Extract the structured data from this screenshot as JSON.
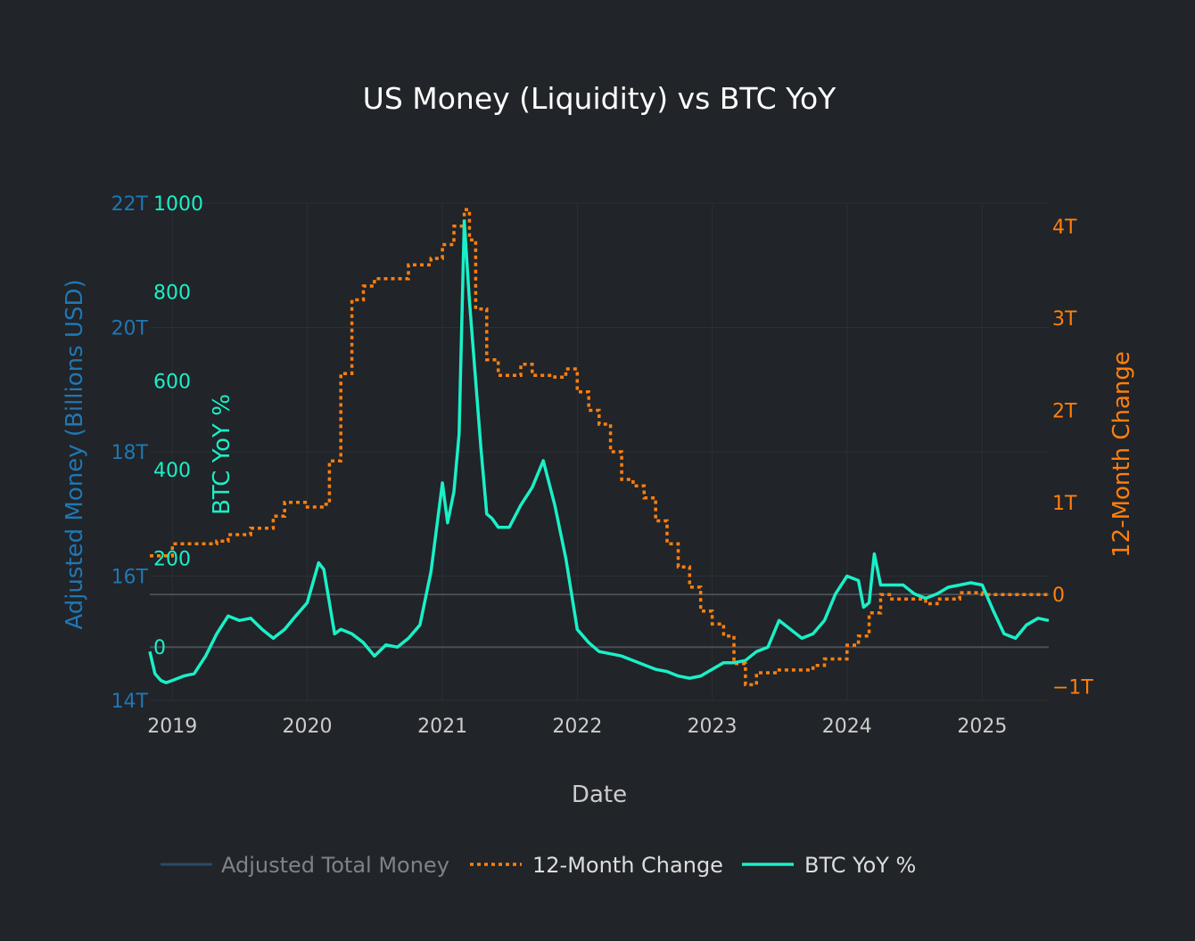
{
  "chart_data": {
    "type": "line",
    "title": "US Money (Liquidity) vs BTC YoY",
    "xlabel": "Date",
    "x_ticks": [
      "2019",
      "2020",
      "2021",
      "2022",
      "2023",
      "2024",
      "2025"
    ],
    "xlim": [
      "2018-11-01",
      "2025-06-30"
    ],
    "axes": {
      "money": {
        "label": "Adjusted Money (Billions USD)",
        "ylim": [
          14,
          22
        ],
        "unit": "T",
        "ticks": [
          "14T",
          "16T",
          "18T",
          "20T",
          "22T"
        ],
        "color": "#1f77b4"
      },
      "btc": {
        "label": "BTC YoY %",
        "ylim": [
          -120,
          1000
        ],
        "ticks": [
          "0",
          "200",
          "400",
          "600",
          "800",
          "1000"
        ],
        "color": "#19f0c8"
      },
      "change": {
        "label": "12-Month Change",
        "ylim": [
          -1.15,
          4.25
        ],
        "unit": "T",
        "ticks": [
          "−1T",
          "0",
          "1T",
          "2T",
          "3T",
          "4T"
        ],
        "color": "#ff7f0e"
      }
    },
    "series": [
      {
        "name": "Adjusted Total Money",
        "axis": "money",
        "style": "solid",
        "color": "#2a4a6e",
        "legend_state": "hidden",
        "points": []
      },
      {
        "name": "12-Month Change",
        "axis": "change",
        "style": "dotted-step",
        "color": "#ff7f0e",
        "points": [
          [
            "2018-11-01",
            0.42
          ],
          [
            "2019-01-01",
            0.55
          ],
          [
            "2019-03-01",
            0.55
          ],
          [
            "2019-05-01",
            0.58
          ],
          [
            "2019-06-01",
            0.65
          ],
          [
            "2019-08-01",
            0.72
          ],
          [
            "2019-10-01",
            0.85
          ],
          [
            "2019-11-01",
            1.0
          ],
          [
            "2020-01-01",
            0.95
          ],
          [
            "2020-02-15",
            0.98
          ],
          [
            "2020-03-01",
            1.45
          ],
          [
            "2020-04-01",
            2.4
          ],
          [
            "2020-05-01",
            3.2
          ],
          [
            "2020-06-01",
            3.35
          ],
          [
            "2020-07-01",
            3.43
          ],
          [
            "2020-09-01",
            3.43
          ],
          [
            "2020-10-01",
            3.58
          ],
          [
            "2020-12-01",
            3.65
          ],
          [
            "2021-01-01",
            3.8
          ],
          [
            "2021-02-01",
            4.0
          ],
          [
            "2021-03-01",
            4.18
          ],
          [
            "2021-03-15",
            3.85
          ],
          [
            "2021-04-01",
            3.1
          ],
          [
            "2021-05-01",
            2.55
          ],
          [
            "2021-06-01",
            2.38
          ],
          [
            "2021-08-01",
            2.5
          ],
          [
            "2021-09-01",
            2.38
          ],
          [
            "2021-11-01",
            2.36
          ],
          [
            "2021-12-01",
            2.45
          ],
          [
            "2022-01-01",
            2.2
          ],
          [
            "2022-02-01",
            2.0
          ],
          [
            "2022-03-01",
            1.85
          ],
          [
            "2022-04-01",
            1.55
          ],
          [
            "2022-05-01",
            1.25
          ],
          [
            "2022-06-01",
            1.18
          ],
          [
            "2022-07-01",
            1.05
          ],
          [
            "2022-08-01",
            0.8
          ],
          [
            "2022-09-01",
            0.55
          ],
          [
            "2022-10-01",
            0.3
          ],
          [
            "2022-11-01",
            0.08
          ],
          [
            "2022-12-01",
            -0.18
          ],
          [
            "2023-01-01",
            -0.32
          ],
          [
            "2023-02-01",
            -0.45
          ],
          [
            "2023-03-01",
            -0.75
          ],
          [
            "2023-04-01",
            -0.98
          ],
          [
            "2023-05-01",
            -0.85
          ],
          [
            "2023-07-01",
            -0.82
          ],
          [
            "2023-10-01",
            -0.77
          ],
          [
            "2023-11-01",
            -0.7
          ],
          [
            "2024-01-01",
            -0.55
          ],
          [
            "2024-02-01",
            -0.45
          ],
          [
            "2024-03-01",
            -0.2
          ],
          [
            "2024-04-01",
            0.0
          ],
          [
            "2024-05-01",
            -0.05
          ],
          [
            "2024-08-01",
            -0.1
          ],
          [
            "2024-09-01",
            -0.05
          ],
          [
            "2024-11-01",
            0.02
          ],
          [
            "2025-01-01",
            0.0
          ],
          [
            "2025-06-30",
            0.0
          ]
        ]
      },
      {
        "name": "BTC YoY %",
        "axis": "btc",
        "style": "solid",
        "color": "#19f0c8",
        "points": [
          [
            "2018-11-01",
            -10
          ],
          [
            "2018-11-15",
            -60
          ],
          [
            "2018-12-01",
            -75
          ],
          [
            "2018-12-15",
            -80
          ],
          [
            "2019-01-01",
            -75
          ],
          [
            "2019-02-01",
            -65
          ],
          [
            "2019-03-01",
            -60
          ],
          [
            "2019-04-01",
            -20
          ],
          [
            "2019-05-01",
            30
          ],
          [
            "2019-06-01",
            70
          ],
          [
            "2019-07-01",
            60
          ],
          [
            "2019-08-01",
            65
          ],
          [
            "2019-09-01",
            40
          ],
          [
            "2019-10-01",
            20
          ],
          [
            "2019-11-01",
            40
          ],
          [
            "2019-12-01",
            70
          ],
          [
            "2020-01-01",
            100
          ],
          [
            "2020-02-01",
            190
          ],
          [
            "2020-02-15",
            175
          ],
          [
            "2020-03-01",
            100
          ],
          [
            "2020-03-15",
            30
          ],
          [
            "2020-04-01",
            40
          ],
          [
            "2020-05-01",
            30
          ],
          [
            "2020-06-01",
            10
          ],
          [
            "2020-07-01",
            -20
          ],
          [
            "2020-08-01",
            5
          ],
          [
            "2020-09-01",
            0
          ],
          [
            "2020-10-01",
            20
          ],
          [
            "2020-11-01",
            50
          ],
          [
            "2020-12-01",
            170
          ],
          [
            "2021-01-01",
            370
          ],
          [
            "2021-01-15",
            280
          ],
          [
            "2021-02-01",
            350
          ],
          [
            "2021-02-15",
            480
          ],
          [
            "2021-03-01",
            960
          ],
          [
            "2021-03-15",
            780
          ],
          [
            "2021-04-01",
            600
          ],
          [
            "2021-04-15",
            450
          ],
          [
            "2021-05-01",
            300
          ],
          [
            "2021-05-15",
            290
          ],
          [
            "2021-06-01",
            270
          ],
          [
            "2021-07-01",
            270
          ],
          [
            "2021-08-01",
            320
          ],
          [
            "2021-09-01",
            360
          ],
          [
            "2021-10-01",
            420
          ],
          [
            "2021-11-01",
            320
          ],
          [
            "2021-12-01",
            200
          ],
          [
            "2022-01-01",
            40
          ],
          [
            "2022-02-01",
            10
          ],
          [
            "2022-03-01",
            -10
          ],
          [
            "2022-04-01",
            -15
          ],
          [
            "2022-05-01",
            -20
          ],
          [
            "2022-06-01",
            -30
          ],
          [
            "2022-07-01",
            -40
          ],
          [
            "2022-08-01",
            -50
          ],
          [
            "2022-09-01",
            -55
          ],
          [
            "2022-10-01",
            -65
          ],
          [
            "2022-11-01",
            -70
          ],
          [
            "2022-12-01",
            -65
          ],
          [
            "2023-01-01",
            -50
          ],
          [
            "2023-02-01",
            -35
          ],
          [
            "2023-03-01",
            -35
          ],
          [
            "2023-04-01",
            -30
          ],
          [
            "2023-05-01",
            -10
          ],
          [
            "2023-06-01",
            0
          ],
          [
            "2023-07-01",
            60
          ],
          [
            "2023-08-01",
            40
          ],
          [
            "2023-09-01",
            20
          ],
          [
            "2023-10-01",
            30
          ],
          [
            "2023-11-01",
            60
          ],
          [
            "2023-12-01",
            120
          ],
          [
            "2024-01-01",
            160
          ],
          [
            "2024-02-01",
            150
          ],
          [
            "2024-02-15",
            90
          ],
          [
            "2024-03-01",
            100
          ],
          [
            "2024-03-15",
            210
          ],
          [
            "2024-04-01",
            140
          ],
          [
            "2024-05-01",
            140
          ],
          [
            "2024-06-01",
            140
          ],
          [
            "2024-07-01",
            120
          ],
          [
            "2024-08-01",
            110
          ],
          [
            "2024-09-01",
            120
          ],
          [
            "2024-10-01",
            135
          ],
          [
            "2024-11-01",
            140
          ],
          [
            "2024-12-01",
            145
          ],
          [
            "2025-01-01",
            140
          ],
          [
            "2025-02-01",
            80
          ],
          [
            "2025-03-01",
            30
          ],
          [
            "2025-04-01",
            20
          ],
          [
            "2025-05-01",
            50
          ],
          [
            "2025-06-01",
            65
          ],
          [
            "2025-06-30",
            60
          ]
        ]
      }
    ],
    "legend": {
      "position": "bottom",
      "items": [
        "Adjusted Total Money",
        "12-Month Change",
        "BTC YoY %"
      ]
    },
    "grid": true
  }
}
